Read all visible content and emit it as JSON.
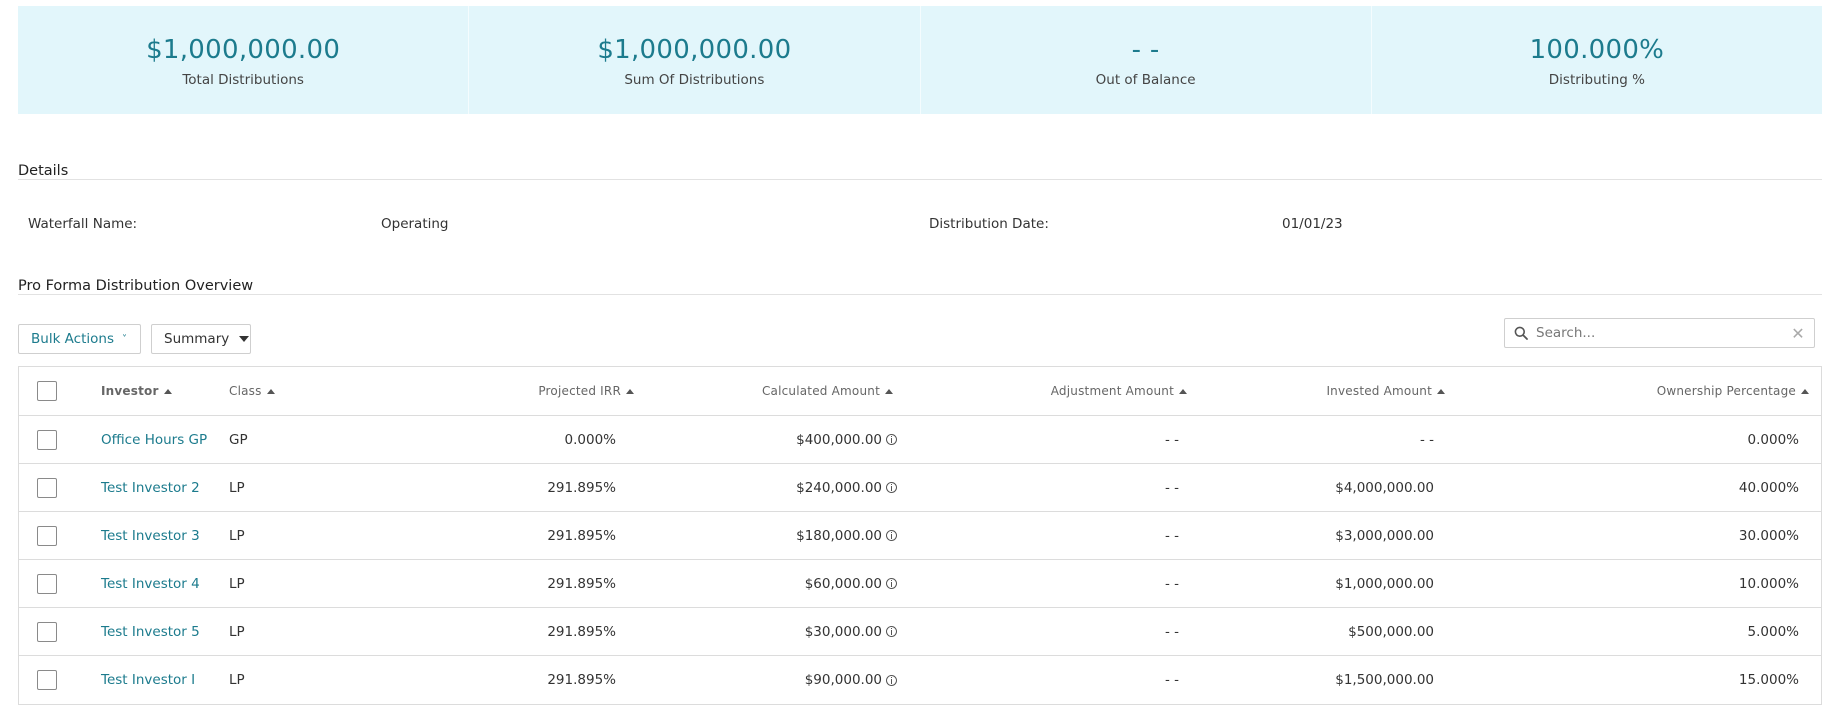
{
  "summary": {
    "items": [
      {
        "value": "$1,000,000.00",
        "label": "Total Distributions"
      },
      {
        "value": "$1,000,000.00",
        "label": "Sum Of Distributions"
      },
      {
        "value": "- -",
        "label": "Out of Balance"
      },
      {
        "value": "100.000%",
        "label": "Distributing %"
      }
    ]
  },
  "details": {
    "title": "Details",
    "waterfall_name_label": "Waterfall Name:",
    "waterfall_name_value": "Operating",
    "distribution_date_label": "Distribution Date:",
    "distribution_date_value": "01/01/23"
  },
  "overview": {
    "title": "Pro Forma Distribution Overview",
    "bulk_actions_label": "Bulk Actions",
    "summary_select_label": "Summary",
    "search_placeholder": "Search..."
  },
  "table": {
    "columns": {
      "investor": "Investor",
      "class": "Class",
      "projected_irr": "Projected IRR",
      "calculated_amount": "Calculated Amount",
      "adjustment_amount": "Adjustment Amount",
      "invested_amount": "Invested Amount",
      "ownership_percentage": "Ownership Percentage"
    },
    "rows": [
      {
        "investor": "Office Hours GP",
        "class": "GP",
        "irr": "0.000%",
        "calc": "$400,000.00",
        "adj": "- -",
        "invested": "- -",
        "own": "0.000%"
      },
      {
        "investor": "Test Investor 2",
        "class": "LP",
        "irr": "291.895%",
        "calc": "$240,000.00",
        "adj": "- -",
        "invested": "$4,000,000.00",
        "own": "40.000%"
      },
      {
        "investor": "Test Investor 3",
        "class": "LP",
        "irr": "291.895%",
        "calc": "$180,000.00",
        "adj": "- -",
        "invested": "$3,000,000.00",
        "own": "30.000%"
      },
      {
        "investor": "Test Investor 4",
        "class": "LP",
        "irr": "291.895%",
        "calc": "$60,000.00",
        "adj": "- -",
        "invested": "$1,000,000.00",
        "own": "10.000%"
      },
      {
        "investor": "Test Investor 5",
        "class": "LP",
        "irr": "291.895%",
        "calc": "$30,000.00",
        "adj": "- -",
        "invested": "$500,000.00",
        "own": "5.000%"
      },
      {
        "investor": "Test Investor I",
        "class": "LP",
        "irr": "291.895%",
        "calc": "$90,000.00",
        "adj": "- -",
        "invested": "$1,500,000.00",
        "own": "15.000%"
      }
    ]
  }
}
